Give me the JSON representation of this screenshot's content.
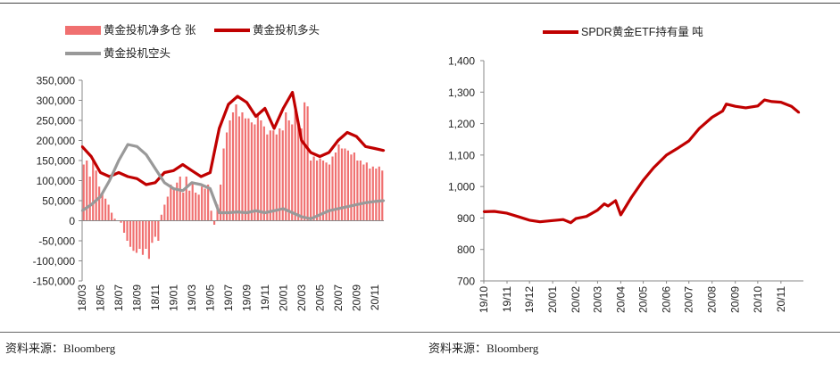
{
  "source_left": "资料来源：Bloomberg",
  "source_right": "资料来源：Bloomberg",
  "chart_data": [
    {
      "type": "bar",
      "title": "",
      "xlabel": "",
      "ylabel": "",
      "ylim": [
        -150000,
        350000
      ],
      "yticks": [
        -150000,
        -100000,
        -50000,
        0,
        50000,
        100000,
        150000,
        200000,
        250000,
        300000,
        350000
      ],
      "ytick_labels": [
        "-150,000",
        "-100,000",
        "-50,000",
        "0",
        "50,000",
        "100,000",
        "150,000",
        "200,000",
        "250,000",
        "300,000",
        "350,000"
      ],
      "xtick_labels": [
        "18/03",
        "18/05",
        "18/07",
        "18/09",
        "18/11",
        "19/01",
        "19/03",
        "19/05",
        "19/07",
        "19/09",
        "19/11",
        "20/01",
        "20/03",
        "20/05",
        "20/07",
        "20/09",
        "20/11"
      ],
      "x_start": "2018-03",
      "x_end": "2020-11",
      "legend": "top",
      "grid": false,
      "series": [
        {
          "name": "黄金投机净多仓 张",
          "kind": "bar",
          "color": "#f07070",
          "values": [
            140000,
            150000,
            110000,
            150000,
            125000,
            85000,
            70000,
            55000,
            40000,
            20000,
            5000,
            0,
            -5000,
            -30000,
            -50000,
            -65000,
            -75000,
            -80000,
            -70000,
            -85000,
            -70000,
            -95000,
            -55000,
            -40000,
            -50000,
            15000,
            40000,
            60000,
            90000,
            80000,
            95000,
            110000,
            70000,
            110000,
            75000,
            95000,
            70000,
            65000,
            85000,
            80000,
            90000,
            25000,
            -10000,
            40000,
            90000,
            180000,
            220000,
            250000,
            270000,
            290000,
            260000,
            270000,
            255000,
            255000,
            245000,
            240000,
            265000,
            250000,
            235000,
            215000,
            225000,
            225000,
            215000,
            230000,
            225000,
            270000,
            250000,
            240000,
            275000,
            240000,
            230000,
            295000,
            285000,
            150000,
            160000,
            150000,
            155000,
            150000,
            145000,
            140000,
            160000,
            170000,
            190000,
            180000,
            180000,
            175000,
            165000,
            170000,
            150000,
            150000,
            140000,
            145000,
            130000,
            135000,
            130000,
            135000,
            125000
          ]
        },
        {
          "name": "黄金投机多头",
          "kind": "line",
          "color": "#c00000",
          "points": [
            [
              "2018-03",
              185000
            ],
            [
              "2018-04",
              160000
            ],
            [
              "2018-05",
              120000
            ],
            [
              "2018-06",
              110000
            ],
            [
              "2018-07",
              120000
            ],
            [
              "2018-08",
              110000
            ],
            [
              "2018-09",
              105000
            ],
            [
              "2018-10",
              90000
            ],
            [
              "2018-11",
              95000
            ],
            [
              "2018-12",
              120000
            ],
            [
              "2019-01",
              125000
            ],
            [
              "2019-02",
              140000
            ],
            [
              "2019-03",
              125000
            ],
            [
              "2019-04",
              110000
            ],
            [
              "2019-05",
              120000
            ],
            [
              "2019-06",
              230000
            ],
            [
              "2019-07",
              290000
            ],
            [
              "2019-08",
              310000
            ],
            [
              "2019-09",
              295000
            ],
            [
              "2019-10",
              260000
            ],
            [
              "2019-11",
              280000
            ],
            [
              "2019-12",
              230000
            ],
            [
              "2020-01",
              280000
            ],
            [
              "2020-02",
              320000
            ],
            [
              "2020-03",
              200000
            ],
            [
              "2020-04",
              170000
            ],
            [
              "2020-05",
              160000
            ],
            [
              "2020-06",
              170000
            ],
            [
              "2020-07",
              200000
            ],
            [
              "2020-08",
              220000
            ],
            [
              "2020-09",
              210000
            ],
            [
              "2020-10",
              185000
            ],
            [
              "2020-11",
              180000
            ],
            [
              "2020-12",
              175000
            ]
          ]
        },
        {
          "name": "黄金投机空头",
          "kind": "line",
          "color": "#999999",
          "points": [
            [
              "2018-03",
              25000
            ],
            [
              "2018-04",
              40000
            ],
            [
              "2018-05",
              60000
            ],
            [
              "2018-06",
              100000
            ],
            [
              "2018-07",
              150000
            ],
            [
              "2018-08",
              190000
            ],
            [
              "2018-09",
              185000
            ],
            [
              "2018-10",
              165000
            ],
            [
              "2018-11",
              130000
            ],
            [
              "2018-12",
              95000
            ],
            [
              "2019-01",
              80000
            ],
            [
              "2019-02",
              75000
            ],
            [
              "2019-03",
              95000
            ],
            [
              "2019-04",
              90000
            ],
            [
              "2019-05",
              80000
            ],
            [
              "2019-06",
              20000
            ],
            [
              "2019-07",
              20000
            ],
            [
              "2019-08",
              22000
            ],
            [
              "2019-09",
              20000
            ],
            [
              "2019-10",
              25000
            ],
            [
              "2019-11",
              20000
            ],
            [
              "2019-12",
              25000
            ],
            [
              "2020-01",
              30000
            ],
            [
              "2020-02",
              20000
            ],
            [
              "2020-03",
              10000
            ],
            [
              "2020-04",
              5000
            ],
            [
              "2020-05",
              15000
            ],
            [
              "2020-06",
              25000
            ],
            [
              "2020-07",
              30000
            ],
            [
              "2020-08",
              35000
            ],
            [
              "2020-09",
              40000
            ],
            [
              "2020-10",
              45000
            ],
            [
              "2020-11",
              48000
            ],
            [
              "2020-12",
              50000
            ]
          ]
        }
      ]
    },
    {
      "type": "line",
      "title": "",
      "xlabel": "",
      "ylabel": "",
      "ylim": [
        700,
        1400
      ],
      "yticks": [
        700,
        800,
        900,
        1000,
        1100,
        1200,
        1300,
        1400
      ],
      "ytick_labels": [
        "700",
        "800",
        "900",
        "1,000",
        "1,100",
        "1,200",
        "1,300",
        "1,400"
      ],
      "xtick_labels": [
        "19/10",
        "19/11",
        "19/12",
        "20/01",
        "20/02",
        "20/03",
        "20/04",
        "20/05",
        "20/06",
        "20/07",
        "20/08",
        "20/09",
        "20/10",
        "20/11"
      ],
      "x_start": "2019-10",
      "x_end": "2020-11",
      "legend": "top",
      "grid": false,
      "series": [
        {
          "name": "SPDR黄金ETF持有量 吨",
          "color": "#c00000",
          "points": [
            [
              "2019-10-01",
              920
            ],
            [
              "2019-10-15",
              921
            ],
            [
              "2019-11-01",
              915
            ],
            [
              "2019-11-15",
              905
            ],
            [
              "2019-12-01",
              893
            ],
            [
              "2019-12-15",
              888
            ],
            [
              "2020-01-01",
              892
            ],
            [
              "2020-01-15",
              895
            ],
            [
              "2020-01-25",
              885
            ],
            [
              "2020-02-01",
              898
            ],
            [
              "2020-02-15",
              905
            ],
            [
              "2020-03-01",
              925
            ],
            [
              "2020-03-10",
              945
            ],
            [
              "2020-03-15",
              938
            ],
            [
              "2020-03-25",
              955
            ],
            [
              "2020-04-01",
              910
            ],
            [
              "2020-04-15",
              965
            ],
            [
              "2020-05-01",
              1020
            ],
            [
              "2020-05-15",
              1060
            ],
            [
              "2020-06-01",
              1100
            ],
            [
              "2020-06-15",
              1120
            ],
            [
              "2020-07-01",
              1145
            ],
            [
              "2020-07-15",
              1185
            ],
            [
              "2020-08-01",
              1220
            ],
            [
              "2020-08-15",
              1240
            ],
            [
              "2020-08-20",
              1262
            ],
            [
              "2020-09-01",
              1255
            ],
            [
              "2020-09-15",
              1250
            ],
            [
              "2020-10-01",
              1256
            ],
            [
              "2020-10-10",
              1275
            ],
            [
              "2020-10-20",
              1270
            ],
            [
              "2020-11-01",
              1268
            ],
            [
              "2020-11-15",
              1255
            ],
            [
              "2020-11-25",
              1235
            ]
          ]
        }
      ]
    }
  ]
}
